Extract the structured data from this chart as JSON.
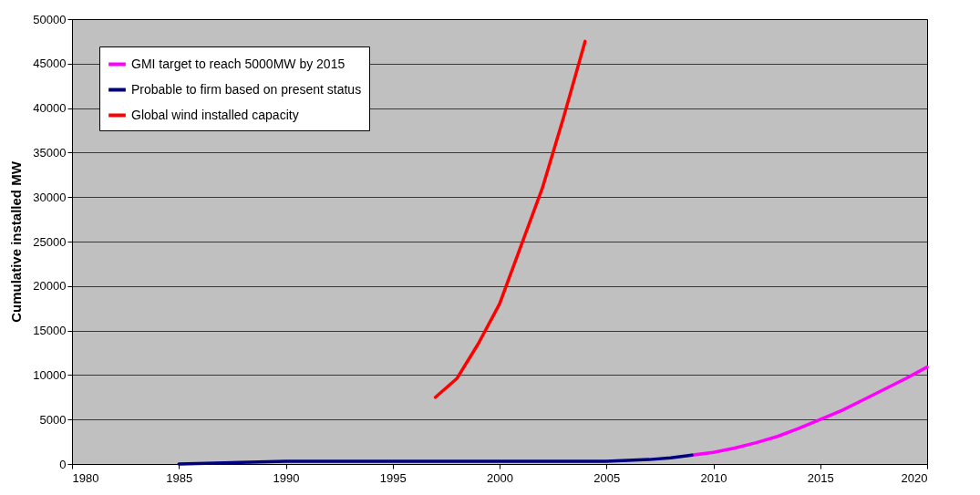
{
  "chart_data": {
    "type": "line",
    "ylabel": "Cumulative installed MW",
    "xlim": [
      1980,
      2020
    ],
    "xticks": [
      1980,
      1985,
      1990,
      1995,
      2000,
      2005,
      2010,
      2015,
      2020
    ],
    "ylim": [
      0,
      50000
    ],
    "yticks": [
      0,
      5000,
      10000,
      15000,
      20000,
      25000,
      30000,
      35000,
      40000,
      45000,
      50000
    ],
    "grid": "y",
    "legend": "top left",
    "marker": "none",
    "line_style": "solid",
    "series": [
      {
        "name": "GMI target to reach 5000MW by 2015",
        "color": "#ff00ff",
        "x": [
          2009,
          2010,
          2011,
          2012,
          2013,
          2014,
          2015,
          2016,
          2017,
          2018,
          2019,
          2020
        ],
        "values": [
          1000,
          1300,
          1800,
          2400,
          3100,
          4000,
          5000,
          6000,
          7200,
          8400,
          9600,
          10900
        ]
      },
      {
        "name": "Probable to firm based on present status",
        "color": "#000080",
        "x": [
          1985,
          1990,
          1995,
          2000,
          2005,
          2006,
          2007,
          2008,
          2009
        ],
        "values": [
          0,
          300,
          300,
          300,
          300,
          400,
          500,
          700,
          1000
        ]
      },
      {
        "name": "Global wind installed capacity",
        "color": "#ff0000",
        "x": [
          1997,
          1998,
          1999,
          2000,
          2001,
          2002,
          2003,
          2004
        ],
        "values": [
          7500,
          9600,
          13500,
          18000,
          24500,
          31000,
          39000,
          47500
        ]
      }
    ]
  }
}
